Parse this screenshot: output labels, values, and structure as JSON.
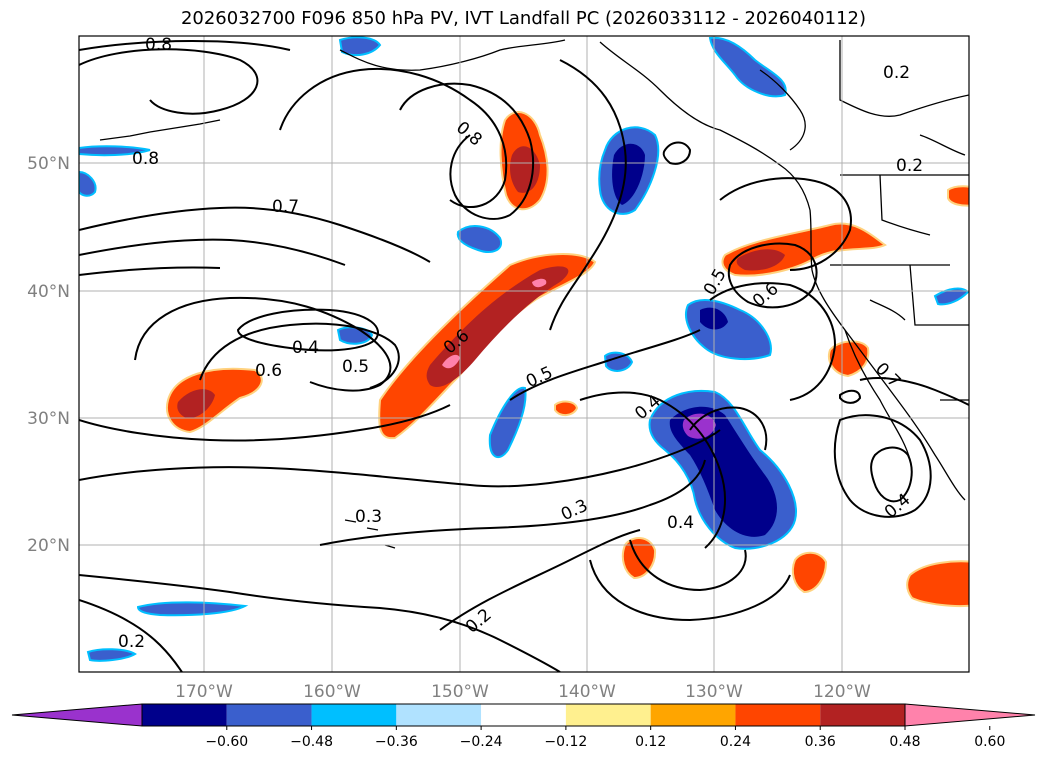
{
  "title": "2026032700 F096 850 hPa PV, IVT Landfall PC (2026033112 - 2026040112)",
  "longitude_labels": [
    "170°W",
    "160°W",
    "150°W",
    "140°W",
    "130°W",
    "120°W"
  ],
  "latitude_labels": [
    "50°N",
    "40°N",
    "30°N",
    "20°N"
  ],
  "contour_labels": [
    "0.8",
    "0.8",
    "0.8",
    "0.7",
    "0.6",
    "0.6",
    "0.5",
    "0.5",
    "0.4",
    "0.4",
    "0.4",
    "0.4",
    "0.3",
    "0.3",
    "0.2",
    "0.2",
    "0.2",
    "0.2",
    "0.5",
    "0.6",
    "0.7"
  ],
  "colorbar": {
    "ticks": [
      "−0.60",
      "−0.48",
      "−0.36",
      "−0.24",
      "−0.12",
      "0.12",
      "0.24",
      "0.36",
      "0.48",
      "0.60"
    ],
    "colors": [
      "#9a32cd",
      "#00008b",
      "#3a5fcd",
      "#00bfff",
      "#b0e2ff",
      "#ffffff",
      "#fff08f",
      "#ffa500",
      "#ff4500",
      "#b22222",
      "#ff82ab"
    ]
  }
}
